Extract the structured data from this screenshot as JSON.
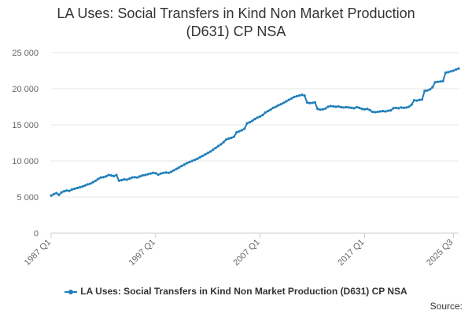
{
  "chart_data": {
    "type": "line",
    "title_lines": [
      "LA Uses: Social Transfers in Kind Non Market Production",
      "(D631) CP NSA"
    ],
    "x_tick_labels": [
      "1987 Q1",
      "1997 Q1",
      "2007 Q1",
      "2017 Q1",
      "2025 Q3"
    ],
    "x_tick_indices": [
      0,
      40,
      80,
      120,
      154
    ],
    "y_tick_labels": [
      "0",
      "5 000",
      "10 000",
      "15 000",
      "20 000",
      "25 000"
    ],
    "y_tick_values": [
      0,
      5000,
      10000,
      15000,
      20000,
      25000
    ],
    "ylim": [
      0,
      25000
    ],
    "xlabel": "",
    "ylabel": "",
    "grid": true,
    "legend_position": "bottom-center",
    "series": [
      {
        "name": "LA Uses: Social Transfers in Kind Non Market Production (D631) CP NSA",
        "color": "#1f7fba",
        "start_period": "1987 Q1",
        "end_period": "2025 Q3",
        "frequency": "quarterly",
        "values": [
          5200,
          5400,
          5550,
          5300,
          5650,
          5800,
          5900,
          5850,
          6050,
          6150,
          6250,
          6350,
          6450,
          6600,
          6750,
          6850,
          7050,
          7250,
          7500,
          7700,
          7750,
          7850,
          8050,
          8000,
          7900,
          8050,
          7250,
          7350,
          7450,
          7400,
          7550,
          7700,
          7750,
          7700,
          7850,
          8000,
          8050,
          8150,
          8250,
          8350,
          8300,
          8100,
          8250,
          8350,
          8400,
          8350,
          8500,
          8700,
          8900,
          9100,
          9300,
          9500,
          9700,
          9850,
          10000,
          10150,
          10300,
          10500,
          10700,
          10900,
          11100,
          11300,
          11550,
          11800,
          12050,
          12300,
          12600,
          12950,
          13100,
          13200,
          13350,
          13950,
          14100,
          14250,
          14450,
          15200,
          15350,
          15550,
          15800,
          16000,
          16150,
          16350,
          16700,
          16900,
          17100,
          17350,
          17500,
          17700,
          17850,
          18050,
          18250,
          18450,
          18650,
          18850,
          18950,
          19050,
          19150,
          19050,
          18100,
          18000,
          18050,
          18100,
          17200,
          17100,
          17150,
          17250,
          17500,
          17600,
          17550,
          17500,
          17550,
          17450,
          17400,
          17450,
          17400,
          17350,
          17300,
          17450,
          17350,
          17200,
          17150,
          17200,
          17050,
          16800,
          16750,
          16800,
          16850,
          16900,
          16850,
          16950,
          17000,
          17300,
          17350,
          17300,
          17400,
          17350,
          17400,
          17500,
          17800,
          18400,
          18350,
          18450,
          18500,
          19700,
          19750,
          19900,
          20200,
          20900,
          20950,
          21000,
          21050,
          22200,
          22300,
          22400,
          22500,
          22650,
          22800
        ]
      }
    ]
  },
  "legend": {
    "label": "LA Uses: Social Transfers in Kind Non Market Production (D631) CP NSA"
  },
  "footer": {
    "source_label": "Source:"
  }
}
